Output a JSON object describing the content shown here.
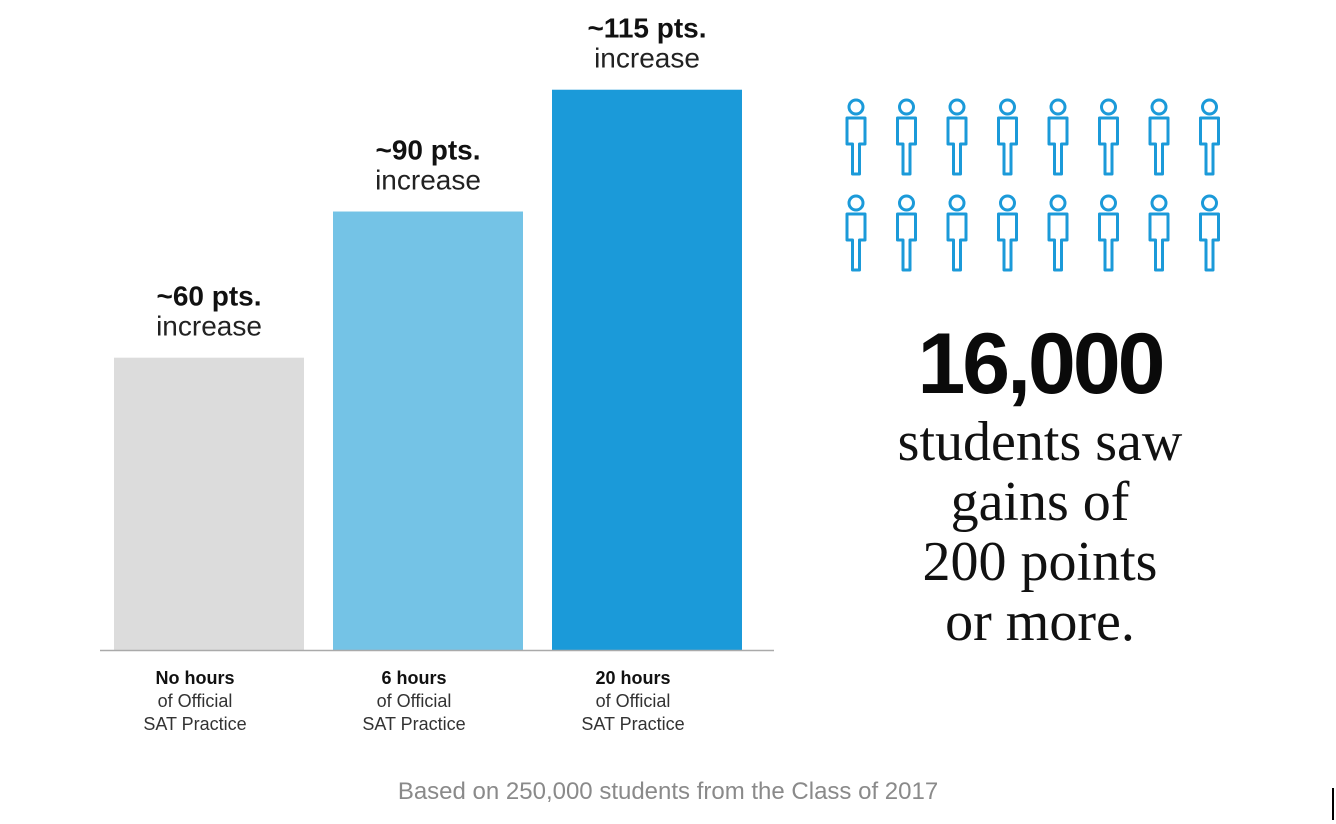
{
  "chart_data": {
    "type": "bar",
    "categories": [
      {
        "bold": "No hours",
        "line1": "of Official",
        "line2": "SAT Practice"
      },
      {
        "bold": "6 hours",
        "line1": "of Official",
        "line2": "SAT Practice"
      },
      {
        "bold": "20 hours",
        "line1": "of Official",
        "line2": "SAT Practice"
      }
    ],
    "values": [
      60,
      90,
      115
    ],
    "value_labels": [
      "~60 pts.",
      "~90 pts.",
      "~115 pts."
    ],
    "value_sublabel": "increase",
    "colors": [
      "#dcdcdc",
      "#74c3e6",
      "#1b9ad9"
    ],
    "ylim": [
      0,
      125
    ],
    "grid": false,
    "title": "",
    "xlabel": "",
    "ylabel": ""
  },
  "people_icons": {
    "icon": "person-outline-icon",
    "rows": 2,
    "per_row": 8,
    "color": "#1b9ad9"
  },
  "stat": {
    "number": "16,000",
    "lines": [
      "students saw",
      "gains of",
      "200 points",
      "or more."
    ]
  },
  "footnote": "Based on 250,000 students from the Class of 2017"
}
